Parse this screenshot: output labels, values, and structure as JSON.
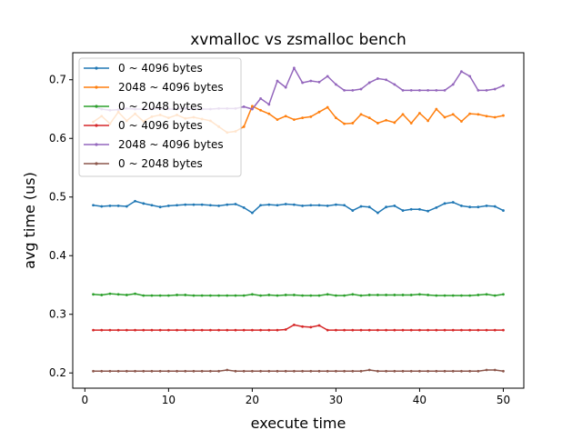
{
  "chart_data": {
    "type": "line",
    "title": "xvmalloc vs zsmalloc bench",
    "xlabel": "execute time",
    "ylabel": "avg time (us)",
    "xlim": [
      -1.45,
      52.45
    ],
    "ylim": [
      0.174,
      0.7461
    ],
    "x_ticks": [
      0,
      10,
      20,
      30,
      40,
      50
    ],
    "y_ticks": [
      0.2,
      0.3,
      0.4,
      0.5,
      0.6,
      0.7
    ],
    "x_tick_labels": [
      "0",
      "10",
      "20",
      "30",
      "40",
      "50"
    ],
    "y_tick_labels": [
      "0.2",
      "0.3",
      "0.4",
      "0.5",
      "0.6",
      "0.7"
    ],
    "legend_position": "upper-left",
    "grid": false,
    "x": [
      1,
      2,
      3,
      4,
      5,
      6,
      7,
      8,
      9,
      10,
      11,
      12,
      13,
      14,
      15,
      16,
      17,
      18,
      19,
      20,
      21,
      22,
      23,
      24,
      25,
      26,
      27,
      28,
      29,
      30,
      31,
      32,
      33,
      34,
      35,
      36,
      37,
      38,
      39,
      40,
      41,
      42,
      43,
      44,
      45,
      46,
      47,
      48,
      49,
      50
    ],
    "series": [
      {
        "name": "0 ~ 4096 bytes",
        "color": "#1f77b4",
        "values": [
          0.486,
          0.484,
          0.485,
          0.485,
          0.484,
          0.493,
          0.489,
          0.486,
          0.483,
          0.485,
          0.486,
          0.487,
          0.487,
          0.487,
          0.486,
          0.485,
          0.487,
          0.488,
          0.482,
          0.473,
          0.486,
          0.487,
          0.486,
          0.488,
          0.487,
          0.485,
          0.486,
          0.486,
          0.485,
          0.487,
          0.486,
          0.477,
          0.484,
          0.483,
          0.473,
          0.483,
          0.485,
          0.477,
          0.479,
          0.479,
          0.476,
          0.482,
          0.489,
          0.491,
          0.485,
          0.483,
          0.483,
          0.485,
          0.484,
          0.477
        ]
      },
      {
        "name": "2048 ~ 4096 bytes",
        "color": "#ff7f0e",
        "values": [
          0.628,
          0.638,
          0.625,
          0.645,
          0.63,
          0.642,
          0.629,
          0.637,
          0.64,
          0.635,
          0.64,
          0.634,
          0.636,
          0.633,
          0.63,
          0.62,
          0.61,
          0.612,
          0.62,
          0.655,
          0.648,
          0.642,
          0.632,
          0.638,
          0.632,
          0.635,
          0.637,
          0.645,
          0.653,
          0.635,
          0.625,
          0.626,
          0.641,
          0.635,
          0.626,
          0.631,
          0.627,
          0.641,
          0.626,
          0.643,
          0.63,
          0.65,
          0.636,
          0.641,
          0.629,
          0.642,
          0.641,
          0.638,
          0.636,
          0.639
        ]
      },
      {
        "name": "0 ~ 2048 bytes",
        "color": "#2ca02c",
        "values": [
          0.334,
          0.333,
          0.335,
          0.334,
          0.333,
          0.335,
          0.332,
          0.332,
          0.332,
          0.332,
          0.333,
          0.333,
          0.332,
          0.332,
          0.332,
          0.332,
          0.332,
          0.332,
          0.332,
          0.334,
          0.332,
          0.333,
          0.332,
          0.333,
          0.333,
          0.332,
          0.332,
          0.332,
          0.334,
          0.332,
          0.332,
          0.334,
          0.332,
          0.333,
          0.333,
          0.333,
          0.333,
          0.333,
          0.333,
          0.334,
          0.333,
          0.332,
          0.332,
          0.332,
          0.332,
          0.332,
          0.333,
          0.334,
          0.332,
          0.334
        ]
      },
      {
        "name": "0 ~ 4096 bytes",
        "color": "#d62728",
        "values": [
          0.273,
          0.273,
          0.273,
          0.273,
          0.273,
          0.273,
          0.273,
          0.273,
          0.273,
          0.273,
          0.273,
          0.273,
          0.273,
          0.273,
          0.273,
          0.273,
          0.273,
          0.273,
          0.273,
          0.273,
          0.273,
          0.273,
          0.273,
          0.274,
          0.282,
          0.279,
          0.278,
          0.281,
          0.273,
          0.273,
          0.273,
          0.273,
          0.273,
          0.273,
          0.273,
          0.273,
          0.273,
          0.273,
          0.273,
          0.273,
          0.273,
          0.273,
          0.273,
          0.273,
          0.273,
          0.273,
          0.273,
          0.273,
          0.273,
          0.273
        ]
      },
      {
        "name": "2048 ~ 4096 bytes",
        "color": "#9467bd",
        "values": [
          0.655,
          0.65,
          0.648,
          0.649,
          0.651,
          0.65,
          0.65,
          0.65,
          0.651,
          0.65,
          0.65,
          0.651,
          0.65,
          0.65,
          0.65,
          0.651,
          0.651,
          0.651,
          0.654,
          0.65,
          0.668,
          0.658,
          0.698,
          0.687,
          0.72,
          0.695,
          0.698,
          0.696,
          0.706,
          0.692,
          0.682,
          0.682,
          0.684,
          0.695,
          0.702,
          0.7,
          0.692,
          0.682,
          0.682,
          0.682,
          0.682,
          0.682,
          0.682,
          0.692,
          0.714,
          0.706,
          0.682,
          0.682,
          0.684,
          0.69
        ]
      },
      {
        "name": "0 ~ 2048 bytes",
        "color": "#8c564b",
        "values": [
          0.203,
          0.203,
          0.203,
          0.203,
          0.203,
          0.203,
          0.203,
          0.203,
          0.203,
          0.203,
          0.203,
          0.203,
          0.203,
          0.203,
          0.203,
          0.203,
          0.205,
          0.203,
          0.203,
          0.203,
          0.203,
          0.203,
          0.203,
          0.203,
          0.203,
          0.203,
          0.203,
          0.203,
          0.203,
          0.203,
          0.203,
          0.203,
          0.203,
          0.205,
          0.203,
          0.203,
          0.203,
          0.203,
          0.203,
          0.203,
          0.203,
          0.203,
          0.203,
          0.203,
          0.203,
          0.203,
          0.203,
          0.205,
          0.205,
          0.203
        ]
      }
    ]
  }
}
